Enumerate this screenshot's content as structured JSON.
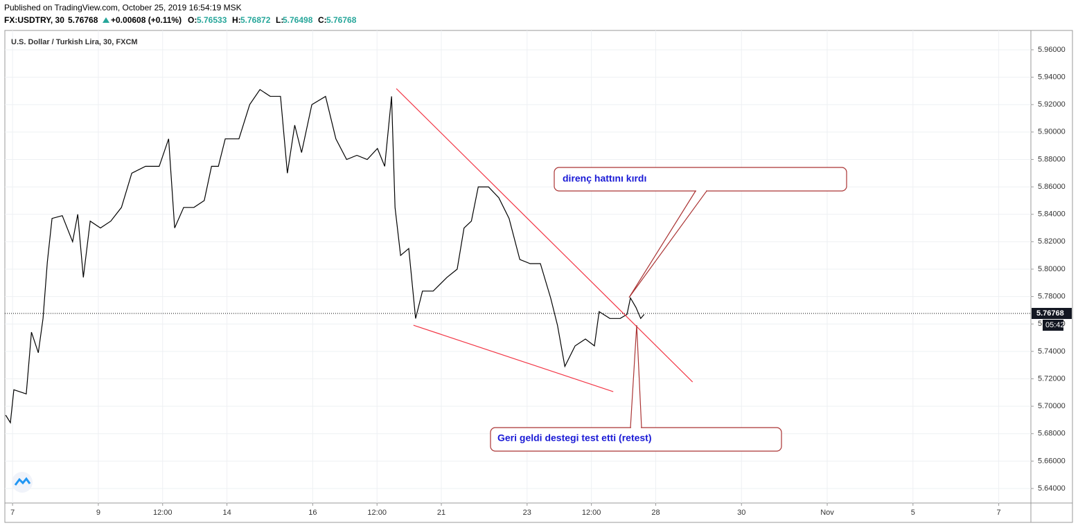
{
  "header": {
    "published": "Published on TradingView.com, October 25, 2019 16:54:19 MSK",
    "symbol": "FX:USDTRY, 30",
    "last": 5.76768,
    "change": "+0.00608 (+0.11%)",
    "o_label": "O:",
    "open": 5.76533,
    "h_label": "H:",
    "high": 5.76872,
    "l_label": "L:",
    "low": 5.76498,
    "c_label": "C:",
    "close": 5.76768
  },
  "chart_data": {
    "type": "line",
    "title": "U.S. Dollar / Turkish Lira, 30, FXCM",
    "color": "#000000",
    "grid": true,
    "x": [
      -0.16,
      -0.05,
      0.03,
      0.32,
      0.44,
      0.6,
      0.71,
      0.81,
      0.92,
      1.16,
      1.4,
      1.52,
      1.65,
      1.81,
      2.05,
      2.29,
      2.54,
      2.78,
      3.1,
      3.42,
      3.64,
      3.78,
      3.99,
      4.23,
      4.47,
      4.64,
      4.8,
      4.96,
      5.28,
      5.53,
      5.77,
      6.01,
      6.25,
      6.41,
      6.58,
      6.74,
      6.98,
      7.3,
      7.54,
      7.79,
      8.03,
      8.27,
      8.51,
      8.68,
      8.84,
      8.92,
      9.05,
      9.24,
      9.4,
      9.56,
      9.81,
      10.13,
      10.37,
      10.53,
      10.7,
      10.86,
      11.1,
      11.34,
      11.58,
      11.83,
      12.07,
      12.31,
      12.55,
      12.71,
      12.88,
      13.12,
      13.36,
      13.57,
      13.68,
      13.93,
      14.17,
      14.33,
      14.41,
      14.54,
      14.65,
      14.73
    ],
    "values": [
      5.6935,
      5.688,
      5.712,
      5.709,
      5.754,
      5.739,
      5.764,
      5.805,
      5.837,
      5.839,
      5.82,
      5.84,
      5.794,
      5.835,
      5.83,
      5.835,
      5.845,
      5.87,
      5.875,
      5.875,
      5.895,
      5.83,
      5.845,
      5.845,
      5.85,
      5.875,
      5.875,
      5.895,
      5.895,
      5.92,
      5.931,
      5.926,
      5.926,
      5.87,
      5.905,
      5.885,
      5.92,
      5.926,
      5.895,
      5.88,
      5.883,
      5.88,
      5.888,
      5.875,
      5.926,
      5.845,
      5.81,
      5.815,
      5.764,
      5.784,
      5.784,
      5.794,
      5.8,
      5.83,
      5.835,
      5.86,
      5.86,
      5.852,
      5.837,
      5.807,
      5.804,
      5.804,
      5.779,
      5.759,
      5.729,
      5.744,
      5.749,
      5.744,
      5.769,
      5.764,
      5.764,
      5.767,
      5.779,
      5.772,
      5.764,
      5.767
    ],
    "trendlines": [
      {
        "color": "#f23645",
        "x": [
          8.95,
          15.86
        ],
        "values": [
          5.9317,
          5.7177
        ]
      },
      {
        "color": "#f23645",
        "x": [
          9.35,
          14.01
        ],
        "values": [
          5.7591,
          5.7106
        ]
      }
    ],
    "last_price": 5.76768,
    "countdown": "05:42",
    "xlim": [
      -0.18,
      23.75
    ],
    "xticks": [
      {
        "value": 0,
        "label": "7"
      },
      {
        "value": 2,
        "label": "9"
      },
      {
        "value": 3.5,
        "label": "12:00"
      },
      {
        "value": 5,
        "label": "14"
      },
      {
        "value": 7,
        "label": "16"
      },
      {
        "value": 8.5,
        "label": "12:00"
      },
      {
        "value": 10,
        "label": "21"
      },
      {
        "value": 12,
        "label": "23"
      },
      {
        "value": 13.5,
        "label": "12:00"
      },
      {
        "value": 15,
        "label": "28"
      },
      {
        "value": 17,
        "label": "30"
      },
      {
        "value": 19,
        "label": "Nov"
      },
      {
        "value": 21,
        "label": "5"
      },
      {
        "value": 23,
        "label": "7"
      }
    ],
    "ylim": [
      5.6294,
      5.9741
    ],
    "yticks": [
      {
        "value": 5.64,
        "label": "5.64000"
      },
      {
        "value": 5.66,
        "label": "5.66000"
      },
      {
        "value": 5.68,
        "label": "5.68000"
      },
      {
        "value": 5.7,
        "label": "5.70000"
      },
      {
        "value": 5.72,
        "label": "5.72000"
      },
      {
        "value": 5.74,
        "label": "5.74000"
      },
      {
        "value": 5.76,
        "label": "5.76000"
      },
      {
        "value": 5.78,
        "label": "5.78000"
      },
      {
        "value": 5.8,
        "label": "5.80000"
      },
      {
        "value": 5.82,
        "label": "5.82000"
      },
      {
        "value": 5.84,
        "label": "5.84000"
      },
      {
        "value": 5.86,
        "label": "5.86000"
      },
      {
        "value": 5.88,
        "label": "5.88000"
      },
      {
        "value": 5.9,
        "label": "5.90000"
      },
      {
        "value": 5.92,
        "label": "5.92000"
      },
      {
        "value": 5.94,
        "label": "5.94000"
      },
      {
        "value": 5.96,
        "label": "5.96000"
      }
    ],
    "annotations": [
      "direnç hattını kırdı",
      "Geri geldi destegi test etti (retest)"
    ]
  }
}
